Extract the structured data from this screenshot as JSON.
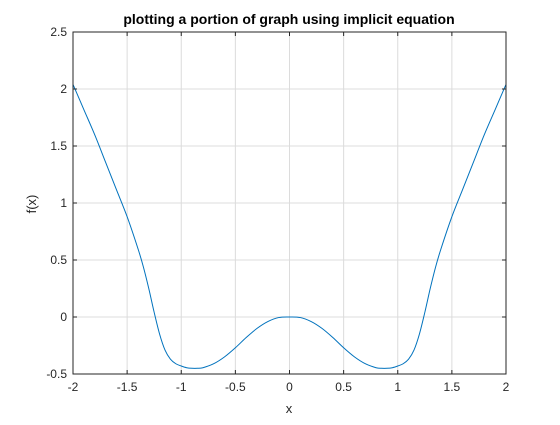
{
  "chart_data": {
    "type": "line",
    "title": "plotting a portion of graph using implicit equation",
    "xlabel": "x",
    "ylabel": "f(x)",
    "xlim": [
      -2,
      2
    ],
    "ylim": [
      -0.5,
      2.5
    ],
    "xticks": [
      -2,
      -1.5,
      -1,
      -0.5,
      0,
      0.5,
      1,
      1.5,
      2
    ],
    "xtick_labels": [
      "-2",
      "-1.5",
      "-1",
      "-0.5",
      "0",
      "0.5",
      "1",
      "1.5",
      "2"
    ],
    "yticks": [
      -0.5,
      0,
      0.5,
      1,
      1.5,
      2,
      2.5
    ],
    "ytick_labels": [
      "-0.5",
      "0",
      "0.5",
      "1",
      "1.5",
      "2",
      "2.5"
    ],
    "grid": true,
    "colors": {
      "line": "#0072BD",
      "grid": "#dcdcdc",
      "axis": "#262626"
    },
    "series": [
      {
        "x": [
          -2,
          -1.9,
          -1.8,
          -1.7,
          -1.6,
          -1.5,
          -1.4,
          -1.35,
          -1.3,
          -1.25,
          -1.2,
          -1.15,
          -1.1,
          -1.05,
          -1,
          -0.95,
          -0.9,
          -0.85,
          -0.8,
          -0.7,
          -0.6,
          -0.5,
          -0.4,
          -0.3,
          -0.2,
          -0.1,
          0,
          0.1,
          0.2,
          0.3,
          0.4,
          0.5,
          0.6,
          0.7,
          0.8,
          0.85,
          0.9,
          0.95,
          1,
          1.05,
          1.1,
          1.15,
          1.2,
          1.25,
          1.3,
          1.35,
          1.4,
          1.5,
          1.6,
          1.7,
          1.8,
          1.9,
          2
        ],
        "y": [
          2.04,
          1.82,
          1.6,
          1.36,
          1.12,
          0.88,
          0.6,
          0.44,
          0.25,
          0.04,
          -0.15,
          -0.29,
          -0.37,
          -0.41,
          -0.43,
          -0.445,
          -0.45,
          -0.45,
          -0.445,
          -0.41,
          -0.35,
          -0.27,
          -0.18,
          -0.1,
          -0.04,
          -0.005,
          0,
          -0.005,
          -0.04,
          -0.1,
          -0.18,
          -0.27,
          -0.35,
          -0.41,
          -0.445,
          -0.45,
          -0.45,
          -0.445,
          -0.43,
          -0.41,
          -0.37,
          -0.29,
          -0.15,
          0.04,
          0.25,
          0.44,
          0.6,
          0.88,
          1.12,
          1.36,
          1.6,
          1.82,
          2.04
        ]
      }
    ]
  }
}
